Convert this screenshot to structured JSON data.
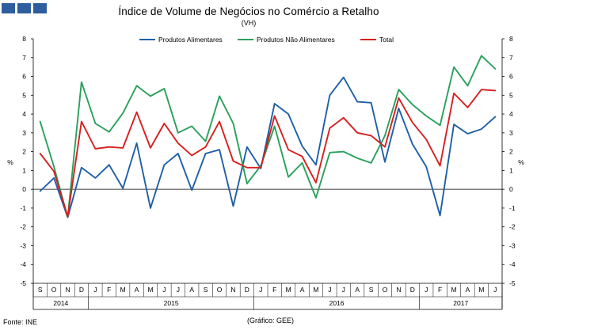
{
  "header": {
    "title": "Índice de Volume de Negócios no Comércio a Retalho",
    "subtitle": "(VH)"
  },
  "footer": {
    "source": "Fonte: INE",
    "credit": "(Gráfico: GEE)"
  },
  "chart_data": {
    "type": "line",
    "title": "Índice de Volume de Negócios no Comércio a Retalho",
    "subtitle": "(VH)",
    "ylabel_left": "%",
    "ylabel_right": "%",
    "ylim": [
      -5,
      8
    ],
    "yticks": [
      -5,
      -4,
      -3,
      -2,
      -1,
      0,
      1,
      2,
      3,
      4,
      5,
      6,
      7,
      8
    ],
    "grid": false,
    "legend_position": "top",
    "months": [
      "S",
      "O",
      "N",
      "D",
      "J",
      "F",
      "M",
      "A",
      "M",
      "J",
      "J",
      "A",
      "S",
      "O",
      "N",
      "D",
      "J",
      "F",
      "M",
      "A",
      "M",
      "J",
      "J",
      "A",
      "S",
      "O",
      "N",
      "D",
      "J",
      "F",
      "M",
      "A",
      "M",
      "J"
    ],
    "years": [
      {
        "label": "2014",
        "start": 0,
        "end": 3
      },
      {
        "label": "2015",
        "start": 4,
        "end": 15
      },
      {
        "label": "2016",
        "start": 16,
        "end": 27
      },
      {
        "label": "2017",
        "start": 28,
        "end": 33
      }
    ],
    "series": [
      {
        "name": "Produtos Alimentares",
        "color": "#1f5fa8",
        "values": [
          -0.1,
          0.6,
          -1.5,
          1.15,
          0.6,
          1.3,
          0.05,
          2.45,
          -1.0,
          1.3,
          1.9,
          -0.05,
          1.9,
          2.1,
          -0.9,
          2.25,
          1.1,
          4.55,
          4.0,
          2.3,
          1.3,
          5.0,
          5.95,
          4.65,
          4.6,
          1.45,
          4.3,
          2.4,
          1.2,
          -1.4,
          3.45,
          2.95,
          3.2,
          3.85
        ]
      },
      {
        "name": "Produtos Não Alimentares",
        "color": "#2aa05a",
        "values": [
          3.6,
          1.2,
          -1.5,
          5.7,
          3.5,
          3.05,
          4.05,
          5.5,
          4.95,
          5.35,
          3.0,
          3.35,
          2.55,
          4.95,
          3.5,
          0.3,
          1.25,
          3.35,
          0.65,
          1.4,
          -0.45,
          1.95,
          2.0,
          1.65,
          1.4,
          2.85,
          5.3,
          4.5,
          3.9,
          3.4,
          6.5,
          5.5,
          7.1,
          6.4
        ]
      },
      {
        "name": "Total",
        "color": "#d62020",
        "values": [
          1.9,
          0.95,
          -1.45,
          3.6,
          2.15,
          2.25,
          2.2,
          4.1,
          2.2,
          3.5,
          2.45,
          1.8,
          2.25,
          3.6,
          1.5,
          1.15,
          1.15,
          3.9,
          2.1,
          1.75,
          0.35,
          3.25,
          3.8,
          3.0,
          2.85,
          2.25,
          4.85,
          3.55,
          2.65,
          1.25,
          5.1,
          4.35,
          5.3,
          5.25
        ]
      }
    ]
  }
}
